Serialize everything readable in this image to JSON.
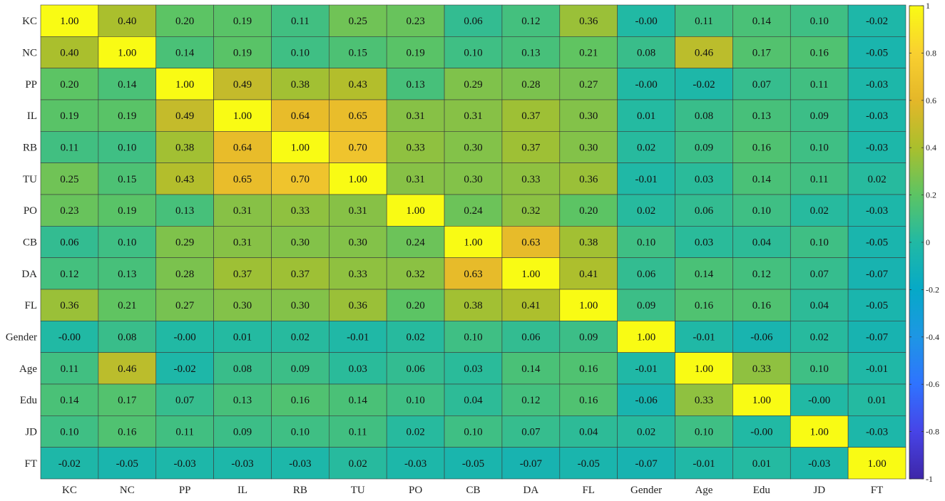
{
  "chart_data": {
    "type": "heatmap",
    "title": "",
    "xlabel": "",
    "ylabel": "",
    "rows": [
      "KC",
      "NC",
      "PP",
      "IL",
      "RB",
      "TU",
      "PO",
      "CB",
      "DA",
      "FL",
      "Gender",
      "Age",
      "Edu",
      "JD",
      "FT"
    ],
    "columns": [
      "KC",
      "NC",
      "PP",
      "IL",
      "RB",
      "TU",
      "PO",
      "CB",
      "DA",
      "FL",
      "Gender",
      "Age",
      "Edu",
      "JD",
      "FT"
    ],
    "values": [
      [
        "1.00",
        "0.40",
        "0.20",
        "0.19",
        "0.11",
        "0.25",
        "0.23",
        "0.06",
        "0.12",
        "0.36",
        "-0.00",
        "0.11",
        "0.14",
        "0.10",
        "-0.02"
      ],
      [
        "0.40",
        "1.00",
        "0.14",
        "0.19",
        "0.10",
        "0.15",
        "0.19",
        "0.10",
        "0.13",
        "0.21",
        "0.08",
        "0.46",
        "0.17",
        "0.16",
        "-0.05"
      ],
      [
        "0.20",
        "0.14",
        "1.00",
        "0.49",
        "0.38",
        "0.43",
        "0.13",
        "0.29",
        "0.28",
        "0.27",
        "-0.00",
        "-0.02",
        "0.07",
        "0.11",
        "-0.03"
      ],
      [
        "0.19",
        "0.19",
        "0.49",
        "1.00",
        "0.64",
        "0.65",
        "0.31",
        "0.31",
        "0.37",
        "0.30",
        "0.01",
        "0.08",
        "0.13",
        "0.09",
        "-0.03"
      ],
      [
        "0.11",
        "0.10",
        "0.38",
        "0.64",
        "1.00",
        "0.70",
        "0.33",
        "0.30",
        "0.37",
        "0.30",
        "0.02",
        "0.09",
        "0.16",
        "0.10",
        "-0.03"
      ],
      [
        "0.25",
        "0.15",
        "0.43",
        "0.65",
        "0.70",
        "1.00",
        "0.31",
        "0.30",
        "0.33",
        "0.36",
        "-0.01",
        "0.03",
        "0.14",
        "0.11",
        "0.02"
      ],
      [
        "0.23",
        "0.19",
        "0.13",
        "0.31",
        "0.33",
        "0.31",
        "1.00",
        "0.24",
        "0.32",
        "0.20",
        "0.02",
        "0.06",
        "0.10",
        "0.02",
        "-0.03"
      ],
      [
        "0.06",
        "0.10",
        "0.29",
        "0.31",
        "0.30",
        "0.30",
        "0.24",
        "1.00",
        "0.63",
        "0.38",
        "0.10",
        "0.03",
        "0.04",
        "0.10",
        "-0.05"
      ],
      [
        "0.12",
        "0.13",
        "0.28",
        "0.37",
        "0.37",
        "0.33",
        "0.32",
        "0.63",
        "1.00",
        "0.41",
        "0.06",
        "0.14",
        "0.12",
        "0.07",
        "-0.07"
      ],
      [
        "0.36",
        "0.21",
        "0.27",
        "0.30",
        "0.30",
        "0.36",
        "0.20",
        "0.38",
        "0.41",
        "1.00",
        "0.09",
        "0.16",
        "0.16",
        "0.04",
        "-0.05"
      ],
      [
        "-0.00",
        "0.08",
        "-0.00",
        "0.01",
        "0.02",
        "-0.01",
        "0.02",
        "0.10",
        "0.06",
        "0.09",
        "1.00",
        "-0.01",
        "-0.06",
        "0.02",
        "-0.07"
      ],
      [
        "0.11",
        "0.46",
        "-0.02",
        "0.08",
        "0.09",
        "0.03",
        "0.06",
        "0.03",
        "0.14",
        "0.16",
        "-0.01",
        "1.00",
        "0.33",
        "0.10",
        "-0.01"
      ],
      [
        "0.14",
        "0.17",
        "0.07",
        "0.13",
        "0.16",
        "0.14",
        "0.10",
        "0.04",
        "0.12",
        "0.16",
        "-0.06",
        "0.33",
        "1.00",
        "-0.00",
        "0.01"
      ],
      [
        "0.10",
        "0.16",
        "0.11",
        "0.09",
        "0.10",
        "0.11",
        "0.02",
        "0.10",
        "0.07",
        "0.04",
        "0.02",
        "0.10",
        "-0.00",
        "1.00",
        "-0.03"
      ],
      [
        "-0.02",
        "-0.05",
        "-0.03",
        "-0.03",
        "-0.03",
        "0.02",
        "-0.03",
        "-0.05",
        "-0.07",
        "-0.05",
        "-0.07",
        "-0.01",
        "0.01",
        "-0.03",
        "1.00"
      ]
    ],
    "colorbar": {
      "range": [
        -1,
        1
      ],
      "ticks": [
        "1",
        "0.8",
        "0.6",
        "0.4",
        "0.2",
        "0",
        "-0.2",
        "-0.4",
        "-0.6",
        "-0.8",
        "-1"
      ],
      "colormap": "parula",
      "stops": [
        "#3e26a8",
        "#4744e7",
        "#2f73ff",
        "#1e96e4",
        "#06a9c7",
        "#21b9a4",
        "#5cc464",
        "#aabf2d",
        "#e4b729",
        "#f9d030",
        "#f9fb14"
      ]
    },
    "grid": true,
    "legend": "right"
  }
}
